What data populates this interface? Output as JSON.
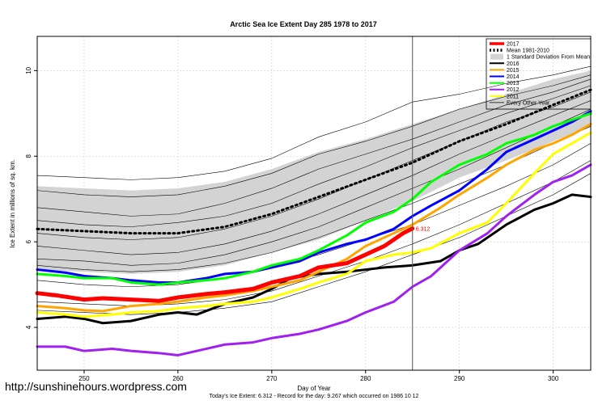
{
  "chart_data": {
    "type": "line",
    "title": "Arctic Sea Ice Extent Day 285 1978 to 2017",
    "xlabel": "Day of Year",
    "ylabel": "Ice Extent in millions of sq. km.",
    "xlim": [
      245,
      304
    ],
    "ylim": [
      3.0,
      10.8
    ],
    "x_ticks": [
      250,
      260,
      270,
      280,
      290,
      300
    ],
    "y_ticks": [
      4,
      6,
      8,
      10
    ],
    "grid": true,
    "legend_position": "top-right",
    "current_day_marker": 285,
    "current_value_label": "6.312",
    "subtitle": "Today's Ice Extent: 6.312  - Record for the day: 9.267 which occurred on 1986 10 12",
    "watermark": "http://sunshinehours.wordpress.com",
    "legend": [
      {
        "label": "2017",
        "color": "#ff0000",
        "style": "solid",
        "width": "thick"
      },
      {
        "label": "Mean 1981-2010",
        "color": "#000000",
        "style": "dotted",
        "width": "thick"
      },
      {
        "label": "1 Standard Deviation From Mean",
        "color": "#d3d3d3",
        "style": "box"
      },
      {
        "label": "2016",
        "color": "#000000",
        "style": "solid",
        "width": "medium"
      },
      {
        "label": "2015",
        "color": "#ffa500",
        "style": "solid",
        "width": "medium"
      },
      {
        "label": "2014",
        "color": "#0000ff",
        "style": "solid",
        "width": "medium"
      },
      {
        "label": "2013",
        "color": "#00ff00",
        "style": "solid",
        "width": "medium"
      },
      {
        "label": "2012",
        "color": "#a020f0",
        "style": "solid",
        "width": "medium"
      },
      {
        "label": "2011",
        "color": "#ffff00",
        "style": "solid",
        "width": "medium"
      },
      {
        "label": "Every Other Year",
        "color": "#000000",
        "style": "solid",
        "width": "thin"
      }
    ],
    "std_band": {
      "x": [
        245,
        250,
        255,
        260,
        265,
        270,
        275,
        280,
        285,
        290,
        295,
        300,
        304
      ],
      "upper": [
        7.3,
        7.25,
        7.2,
        7.25,
        7.4,
        7.7,
        8.1,
        8.4,
        8.75,
        9.1,
        9.45,
        9.8,
        10.0
      ],
      "lower": [
        5.35,
        5.3,
        5.25,
        5.3,
        5.45,
        5.75,
        6.05,
        6.5,
        6.95,
        7.5,
        7.9,
        8.35,
        8.7
      ]
    },
    "series": [
      {
        "name": "Mean 1981-2010",
        "color": "#000000",
        "style": "dotted",
        "width": 3,
        "x": [
          245,
          250,
          255,
          260,
          265,
          270,
          275,
          280,
          285,
          290,
          295,
          300,
          304
        ],
        "y": [
          6.3,
          6.25,
          6.2,
          6.2,
          6.35,
          6.65,
          7.05,
          7.45,
          7.85,
          8.35,
          8.75,
          9.2,
          9.55
        ]
      },
      {
        "name": "2017",
        "color": "#ff0000",
        "style": "solid",
        "width": 5,
        "x": [
          245,
          247,
          250,
          252,
          255,
          258,
          260,
          263,
          265,
          268,
          270,
          273,
          275,
          278,
          280,
          282,
          284,
          285
        ],
        "y": [
          4.8,
          4.75,
          4.65,
          4.68,
          4.65,
          4.62,
          4.7,
          4.78,
          4.82,
          4.9,
          5.05,
          5.2,
          5.4,
          5.5,
          5.7,
          5.9,
          6.2,
          6.312
        ]
      },
      {
        "name": "2016",
        "color": "#000000",
        "style": "solid",
        "width": 3,
        "x": [
          245,
          248,
          250,
          252,
          255,
          258,
          260,
          262,
          265,
          268,
          270,
          272,
          275,
          278,
          280,
          282,
          285,
          288,
          290,
          292,
          295,
          298,
          300,
          302,
          304
        ],
        "y": [
          4.2,
          4.25,
          4.2,
          4.1,
          4.15,
          4.3,
          4.35,
          4.3,
          4.55,
          4.7,
          4.9,
          5.15,
          5.25,
          5.3,
          5.35,
          5.4,
          5.45,
          5.55,
          5.8,
          5.95,
          6.4,
          6.75,
          6.9,
          7.1,
          7.05
        ]
      },
      {
        "name": "2015",
        "color": "#ffa500",
        "style": "solid",
        "width": 3,
        "x": [
          245,
          248,
          250,
          252,
          255,
          258,
          260,
          263,
          265,
          268,
          270,
          273,
          275,
          278,
          280,
          283,
          285,
          288,
          290,
          293,
          295,
          298,
          300,
          302,
          304
        ],
        "y": [
          4.5,
          4.45,
          4.4,
          4.38,
          4.5,
          4.55,
          4.6,
          4.7,
          4.75,
          4.85,
          4.95,
          5.1,
          5.3,
          5.6,
          5.9,
          6.2,
          6.4,
          6.8,
          7.1,
          7.5,
          7.8,
          8.15,
          8.3,
          8.5,
          8.75
        ]
      },
      {
        "name": "2014",
        "color": "#0000ff",
        "style": "solid",
        "width": 3,
        "x": [
          245,
          248,
          250,
          253,
          255,
          258,
          260,
          263,
          265,
          268,
          270,
          273,
          275,
          278,
          280,
          283,
          285,
          287,
          290,
          293,
          295,
          298,
          300,
          302,
          304
        ],
        "y": [
          5.35,
          5.28,
          5.2,
          5.15,
          5.1,
          5.05,
          5.05,
          5.15,
          5.25,
          5.3,
          5.4,
          5.55,
          5.75,
          5.95,
          6.05,
          6.3,
          6.6,
          6.85,
          7.2,
          7.7,
          8.1,
          8.4,
          8.6,
          8.8,
          9.05
        ]
      },
      {
        "name": "2013",
        "color": "#00ff00",
        "style": "solid",
        "width": 3,
        "x": [
          245,
          248,
          250,
          253,
          255,
          258,
          260,
          263,
          265,
          268,
          270,
          273,
          275,
          278,
          280,
          283,
          285,
          287,
          290,
          293,
          295,
          298,
          300,
          302,
          304
        ],
        "y": [
          5.25,
          5.2,
          5.15,
          5.15,
          5.05,
          5.0,
          5.05,
          5.1,
          5.15,
          5.3,
          5.45,
          5.6,
          5.8,
          6.15,
          6.45,
          6.7,
          7.0,
          7.4,
          7.8,
          8.05,
          8.3,
          8.5,
          8.7,
          8.85,
          9.0
        ]
      },
      {
        "name": "2012",
        "color": "#a020f0",
        "style": "solid",
        "width": 3,
        "x": [
          245,
          248,
          250,
          253,
          255,
          258,
          260,
          263,
          265,
          268,
          270,
          273,
          275,
          278,
          280,
          283,
          285,
          287,
          290,
          293,
          295,
          298,
          300,
          302,
          304
        ],
        "y": [
          3.55,
          3.55,
          3.45,
          3.5,
          3.45,
          3.4,
          3.35,
          3.5,
          3.6,
          3.65,
          3.75,
          3.85,
          3.95,
          4.15,
          4.35,
          4.6,
          4.95,
          5.2,
          5.8,
          6.2,
          6.6,
          7.1,
          7.4,
          7.55,
          7.8
        ]
      },
      {
        "name": "2011",
        "color": "#ffff00",
        "style": "solid",
        "width": 3,
        "x": [
          245,
          248,
          250,
          253,
          255,
          258,
          260,
          263,
          265,
          268,
          270,
          273,
          275,
          278,
          280,
          283,
          285,
          287,
          290,
          293,
          295,
          298,
          300,
          302,
          304
        ],
        "y": [
          4.35,
          4.3,
          4.25,
          4.3,
          4.35,
          4.38,
          4.45,
          4.5,
          4.55,
          4.6,
          4.7,
          4.9,
          5.05,
          5.25,
          5.55,
          5.7,
          5.75,
          5.85,
          6.2,
          6.45,
          6.9,
          7.6,
          8.05,
          8.3,
          8.55
        ]
      },
      {
        "name": "Every Other Year",
        "color": "#000000",
        "style": "solid",
        "width": 0.6,
        "x": [
          245,
          250,
          255,
          260,
          265,
          270,
          275,
          280,
          285,
          290,
          295,
          300,
          304
        ],
        "y": [
          7.55,
          7.5,
          7.45,
          7.5,
          7.65,
          7.95,
          8.45,
          8.8,
          9.267,
          9.45,
          9.7,
          9.9,
          10.1
        ]
      },
      {
        "name": "Every Other Year",
        "color": "#000000",
        "style": "solid",
        "width": 0.6,
        "x": [
          245,
          250,
          255,
          260,
          265,
          270,
          275,
          280,
          285,
          290,
          295,
          300,
          304
        ],
        "y": [
          7.2,
          7.1,
          7.05,
          7.1,
          7.3,
          7.6,
          8.05,
          8.35,
          8.7,
          9.1,
          9.4,
          9.65,
          9.9
        ]
      },
      {
        "name": "Every Other Year",
        "color": "#000000",
        "style": "solid",
        "width": 0.6,
        "x": [
          245,
          250,
          255,
          260,
          265,
          270,
          275,
          280,
          285,
          290,
          295,
          300,
          304
        ],
        "y": [
          6.8,
          6.7,
          6.6,
          6.65,
          6.9,
          7.25,
          7.7,
          8.05,
          8.4,
          8.8,
          9.2,
          9.5,
          9.8
        ]
      },
      {
        "name": "Every Other Year",
        "color": "#000000",
        "style": "solid",
        "width": 0.6,
        "x": [
          245,
          250,
          255,
          260,
          265,
          270,
          275,
          280,
          285,
          290,
          295,
          300,
          304
        ],
        "y": [
          6.5,
          6.4,
          6.35,
          6.45,
          6.6,
          6.9,
          7.35,
          7.75,
          8.2,
          8.6,
          9.0,
          9.35,
          9.65
        ]
      },
      {
        "name": "Every Other Year",
        "color": "#000000",
        "style": "solid",
        "width": 0.6,
        "x": [
          245,
          250,
          255,
          260,
          265,
          270,
          275,
          280,
          285,
          290,
          295,
          300,
          304
        ],
        "y": [
          6.2,
          6.1,
          6.05,
          6.1,
          6.3,
          6.6,
          7.0,
          7.45,
          7.9,
          8.35,
          8.8,
          9.15,
          9.5
        ]
      },
      {
        "name": "Every Other Year",
        "color": "#000000",
        "style": "solid",
        "width": 0.6,
        "x": [
          245,
          250,
          255,
          260,
          265,
          270,
          275,
          280,
          285,
          290,
          295,
          300,
          304
        ],
        "y": [
          5.9,
          5.8,
          5.7,
          5.75,
          5.95,
          6.25,
          6.65,
          7.1,
          7.55,
          8.05,
          8.5,
          8.95,
          9.3
        ]
      },
      {
        "name": "Every Other Year",
        "color": "#000000",
        "style": "solid",
        "width": 0.6,
        "x": [
          245,
          250,
          255,
          260,
          265,
          270,
          275,
          280,
          285,
          290,
          295,
          300,
          304
        ],
        "y": [
          5.6,
          5.55,
          5.45,
          5.5,
          5.7,
          6.0,
          6.35,
          6.8,
          7.25,
          7.7,
          8.2,
          8.7,
          9.1
        ]
      },
      {
        "name": "Every Other Year",
        "color": "#000000",
        "style": "solid",
        "width": 0.6,
        "x": [
          245,
          250,
          255,
          260,
          265,
          270,
          275,
          280,
          285,
          290,
          295,
          300,
          304
        ],
        "y": [
          5.45,
          5.35,
          5.3,
          5.35,
          5.5,
          5.75,
          6.1,
          6.5,
          6.9,
          7.35,
          7.8,
          8.3,
          8.7
        ]
      },
      {
        "name": "Every Other Year",
        "color": "#000000",
        "style": "solid",
        "width": 0.6,
        "x": [
          245,
          250,
          255,
          260,
          265,
          270,
          275,
          280,
          285,
          290,
          295,
          300,
          304
        ],
        "y": [
          5.1,
          5.0,
          4.95,
          5.0,
          5.15,
          5.4,
          5.7,
          6.05,
          6.4,
          6.85,
          7.3,
          7.8,
          8.3
        ]
      },
      {
        "name": "Every Other Year",
        "color": "#000000",
        "style": "solid",
        "width": 0.6,
        "x": [
          245,
          250,
          255,
          260,
          265,
          270,
          275,
          280,
          285,
          290,
          295,
          300,
          304
        ],
        "y": [
          4.6,
          4.55,
          4.5,
          4.55,
          4.65,
          4.85,
          5.2,
          5.55,
          5.95,
          6.4,
          6.9,
          7.4,
          7.9
        ]
      },
      {
        "name": "Every Other Year",
        "color": "#000000",
        "style": "solid",
        "width": 0.6,
        "x": [
          245,
          250,
          255,
          260,
          265,
          270,
          275,
          280,
          285,
          290,
          295,
          300,
          304
        ],
        "y": [
          4.4,
          4.35,
          4.3,
          4.35,
          4.45,
          4.6,
          4.95,
          5.3,
          5.7,
          6.1,
          6.6,
          7.1,
          7.6
        ]
      }
    ]
  }
}
